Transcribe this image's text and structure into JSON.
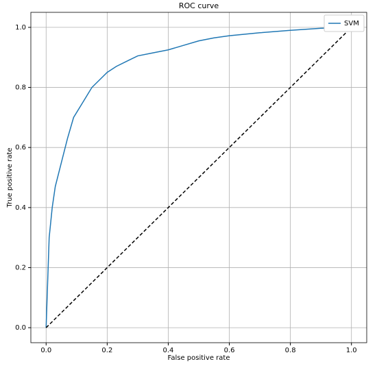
{
  "chart_data": {
    "type": "line",
    "title": "ROC curve",
    "x_label": "False positive rate",
    "y_label": "True positive rate",
    "series": [
      {
        "name": "SVM",
        "color": "#1f77b4",
        "linestyle": "solid",
        "x": [
          0,
          0.005,
          0.01,
          0.02,
          0.03,
          0.05,
          0.07,
          0.09,
          0.12,
          0.15,
          0.18,
          0.2,
          0.23,
          0.27,
          0.3,
          0.35,
          0.4,
          0.45,
          0.5,
          0.55,
          0.6,
          0.7,
          0.8,
          0.9,
          1
        ],
        "values": [
          0,
          0.15,
          0.3,
          0.4,
          0.47,
          0.55,
          0.63,
          0.7,
          0.75,
          0.8,
          0.83,
          0.85,
          0.87,
          0.89,
          0.905,
          0.915,
          0.925,
          0.94,
          0.955,
          0.965,
          0.972,
          0.982,
          0.99,
          0.997,
          1
        ]
      },
      {
        "color": "#000000",
        "linestyle": "dashed",
        "x": [
          0,
          1
        ],
        "values": [
          0,
          1
        ]
      }
    ],
    "xlim": [
      -0.05,
      1.05
    ],
    "ylim": [
      -0.05,
      1.05
    ],
    "xticks": [
      {
        "value": 0,
        "label": "0.0"
      },
      0.2,
      0.4,
      0.6,
      0.8,
      {
        "value": 1,
        "label": "1.0"
      }
    ],
    "yticks": [
      {
        "value": 0,
        "label": "0.0"
      },
      0.2,
      0.4,
      0.6,
      0.8,
      {
        "value": 1,
        "label": "1.0"
      }
    ],
    "grid": true,
    "legend": "upper right"
  }
}
